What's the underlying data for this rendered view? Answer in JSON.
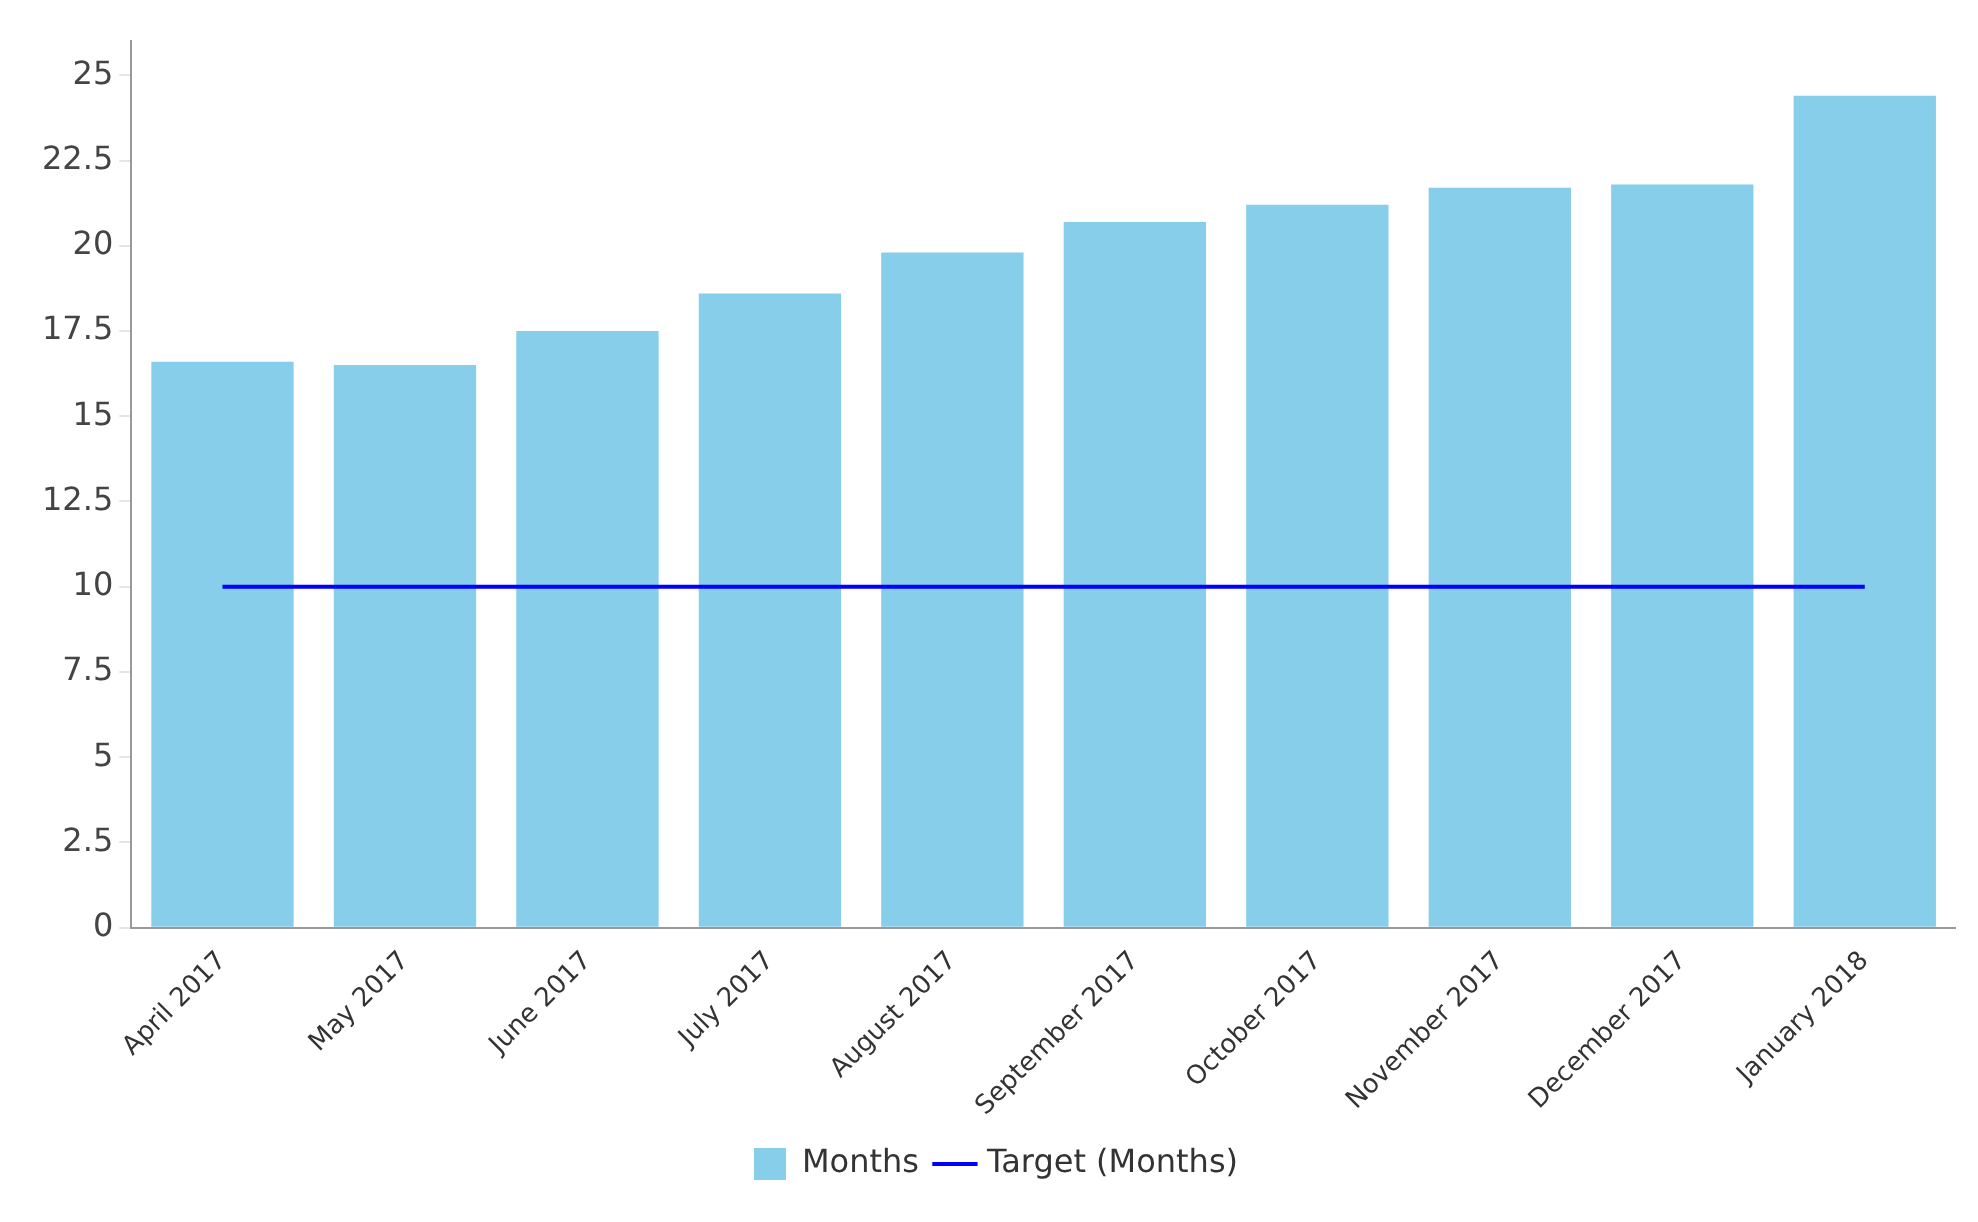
{
  "chart_data": {
    "type": "bar",
    "categories": [
      "April 2017",
      "May 2017",
      "June 2017",
      "July 2017",
      "August 2017",
      "September 2017",
      "October 2017",
      "November 2017",
      "December 2017",
      "January 2018"
    ],
    "series": [
      {
        "name": "Months",
        "color": "#87ceeb",
        "values": [
          16.6,
          16.5,
          17.5,
          18.6,
          19.8,
          20.7,
          21.2,
          21.7,
          21.8,
          24.4
        ]
      },
      {
        "name": "Target (Months)",
        "type": "line",
        "color": "#0000ff",
        "values": [
          10,
          10,
          10,
          10,
          10,
          10,
          10,
          10,
          10,
          10
        ]
      }
    ],
    "ylim": [
      0,
      26
    ],
    "yticks": [
      0,
      2.5,
      5,
      7.5,
      10,
      12.5,
      15,
      17.5,
      20,
      22.5,
      25
    ],
    "grid": false,
    "legend": "bottom",
    "marker": "none",
    "line_style": "solid"
  }
}
